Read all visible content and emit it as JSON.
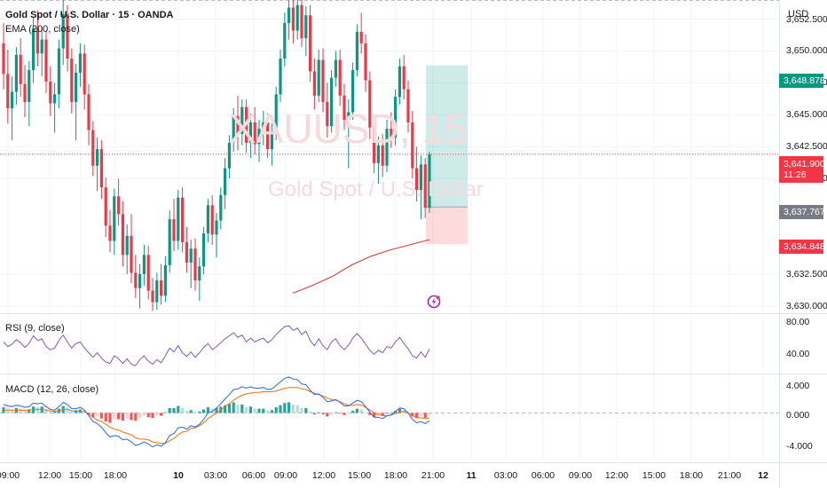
{
  "header": {
    "symbol_line": "Gold Spot / U.S. Dollar · 15 · OANDA",
    "ema_label": "EMA (200, close)"
  },
  "watermark": {
    "ticker": "XAUUSD, 15",
    "name": "Gold Spot / U.S. Dollar"
  },
  "currency": "USD",
  "price_axis": {
    "labels": [
      "3,652.500",
      "3,650.000",
      "3,647.500",
      "3,645.000",
      "3,642.500",
      "3,640.000",
      "3,632.500",
      "3,630.000"
    ],
    "values": [
      3652.5,
      3650.0,
      3647.5,
      3645.0,
      3642.5,
      3640.0,
      3632.5,
      3630.0
    ]
  },
  "price_tags": {
    "target": {
      "text": "3,648.878",
      "color": "#089981"
    },
    "current": {
      "text": "3,641.900",
      "color": "#f23645"
    },
    "countdown": "11:26",
    "entry": {
      "text": "3,637.767",
      "color": "#787b86"
    },
    "stop": {
      "text": "3,634.848",
      "color": "#f23645"
    }
  },
  "rsi": {
    "label": "RSI (9, close)",
    "axis": [
      "80.00",
      "40.00"
    ],
    "upper": 70,
    "lower": 30
  },
  "macd": {
    "label": "MACD (12, 26, close)",
    "axis": [
      "4.000",
      "0.000",
      "-4.000"
    ]
  },
  "time_axis": [
    "09:00",
    "12:00",
    "15:00",
    "18:00",
    "10",
    "03:00",
    "06:00",
    "09:00",
    "12:00",
    "15:00",
    "18:00",
    "21:00",
    "11",
    "03:00",
    "06:00",
    "09:00",
    "12:00",
    "15:00",
    "18:00",
    "21:00",
    "12"
  ],
  "chart_data": {
    "type": "candlestick",
    "instrument": "XAUUSD",
    "timeframe": "15",
    "ylim": [
      3629.5,
      3654.0
    ],
    "candles": [
      [
        3650.6,
        3652.2,
        3647.0,
        3648.2
      ],
      [
        3648.2,
        3650.1,
        3644.3,
        3645.5
      ],
      [
        3645.5,
        3648.0,
        3643.0,
        3646.8
      ],
      [
        3646.8,
        3650.3,
        3645.8,
        3649.7
      ],
      [
        3649.7,
        3651.0,
        3646.4,
        3647.4
      ],
      [
        3647.4,
        3648.9,
        3644.8,
        3646.0
      ],
      [
        3646.0,
        3649.2,
        3644.1,
        3648.5
      ],
      [
        3648.5,
        3652.6,
        3647.5,
        3651.8
      ],
      [
        3651.8,
        3653.2,
        3648.8,
        3649.8
      ],
      [
        3649.8,
        3651.9,
        3648.0,
        3650.9
      ],
      [
        3650.9,
        3651.6,
        3646.7,
        3647.6
      ],
      [
        3647.6,
        3648.8,
        3644.9,
        3645.9
      ],
      [
        3645.9,
        3647.5,
        3643.6,
        3646.6
      ],
      [
        3646.6,
        3650.9,
        3645.5,
        3650.2
      ],
      [
        3650.2,
        3654.2,
        3648.9,
        3652.9
      ],
      [
        3652.9,
        3653.6,
        3648.4,
        3649.4
      ],
      [
        3649.4,
        3650.2,
        3645.1,
        3646.0
      ],
      [
        3646.0,
        3649.0,
        3643.0,
        3648.3
      ],
      [
        3648.3,
        3650.6,
        3647.2,
        3649.8
      ],
      [
        3649.8,
        3650.5,
        3645.4,
        3646.6
      ],
      [
        3646.6,
        3647.4,
        3642.6,
        3643.8
      ],
      [
        3643.8,
        3644.5,
        3640.2,
        3641.0
      ],
      [
        3641.0,
        3643.2,
        3639.0,
        3642.3
      ],
      [
        3642.3,
        3643.0,
        3638.4,
        3639.3
      ],
      [
        3639.3,
        3640.1,
        3635.4,
        3636.3
      ],
      [
        3636.3,
        3637.5,
        3634.2,
        3635.1
      ],
      [
        3635.1,
        3639.2,
        3634.0,
        3638.6
      ],
      [
        3638.6,
        3640.0,
        3636.3,
        3637.2
      ],
      [
        3637.2,
        3638.2,
        3633.1,
        3634.0
      ],
      [
        3634.0,
        3636.4,
        3632.5,
        3635.5
      ],
      [
        3635.5,
        3637.2,
        3631.8,
        3632.6
      ],
      [
        3632.6,
        3634.0,
        3630.6,
        3631.4
      ],
      [
        3631.4,
        3633.3,
        3629.8,
        3632.5
      ],
      [
        3632.5,
        3634.8,
        3631.6,
        3634.0
      ],
      [
        3634.0,
        3634.7,
        3630.5,
        3631.2
      ],
      [
        3631.2,
        3632.2,
        3629.6,
        3630.3
      ],
      [
        3630.3,
        3632.6,
        3629.7,
        3632.0
      ],
      [
        3632.0,
        3633.3,
        3630.1,
        3630.8
      ],
      [
        3630.8,
        3633.9,
        3630.3,
        3633.2
      ],
      [
        3633.2,
        3637.5,
        3632.6,
        3636.8
      ],
      [
        3636.8,
        3638.4,
        3634.3,
        3635.1
      ],
      [
        3635.1,
        3639.1,
        3634.4,
        3638.5
      ],
      [
        3638.5,
        3639.3,
        3634.2,
        3635.0
      ],
      [
        3635.0,
        3636.2,
        3632.6,
        3633.4
      ],
      [
        3633.4,
        3635.2,
        3631.4,
        3634.5
      ],
      [
        3634.5,
        3635.3,
        3631.2,
        3632.0
      ],
      [
        3632.0,
        3633.8,
        3630.4,
        3633.1
      ],
      [
        3633.1,
        3636.2,
        3632.5,
        3635.7
      ],
      [
        3635.7,
        3638.4,
        3635.0,
        3637.9
      ],
      [
        3637.9,
        3638.7,
        3634.8,
        3635.6
      ],
      [
        3635.6,
        3637.3,
        3633.8,
        3636.7
      ],
      [
        3636.7,
        3639.3,
        3636.0,
        3638.7
      ],
      [
        3638.7,
        3641.6,
        3637.6,
        3640.8
      ],
      [
        3640.8,
        3643.4,
        3640.0,
        3642.8
      ],
      [
        3642.8,
        3645.5,
        3642.1,
        3644.9
      ],
      [
        3644.9,
        3646.5,
        3642.2,
        3643.5
      ],
      [
        3643.5,
        3646.2,
        3642.6,
        3645.6
      ],
      [
        3645.6,
        3646.2,
        3642.0,
        3642.8
      ],
      [
        3642.8,
        3645.1,
        3641.6,
        3644.4
      ],
      [
        3644.4,
        3645.6,
        3641.9,
        3642.7
      ],
      [
        3642.7,
        3644.6,
        3641.3,
        3643.9
      ],
      [
        3643.9,
        3645.3,
        3642.6,
        3644.4
      ],
      [
        3644.4,
        3645.1,
        3641.6,
        3642.3
      ],
      [
        3642.3,
        3644.3,
        3641.0,
        3643.7
      ],
      [
        3643.7,
        3647.2,
        3643.0,
        3646.6
      ],
      [
        3646.6,
        3650.1,
        3646.0,
        3649.4
      ],
      [
        3649.4,
        3653.0,
        3648.8,
        3652.2
      ],
      [
        3652.2,
        3654.3,
        3650.9,
        3653.4
      ],
      [
        3653.4,
        3654.3,
        3650.6,
        3651.6
      ],
      [
        3651.6,
        3654.1,
        3650.9,
        3653.6
      ],
      [
        3653.6,
        3654.4,
        3650.3,
        3651.0
      ],
      [
        3651.0,
        3653.5,
        3649.6,
        3652.8
      ],
      [
        3652.8,
        3653.6,
        3647.6,
        3648.4
      ],
      [
        3648.4,
        3649.4,
        3645.4,
        3646.5
      ],
      [
        3646.5,
        3650.1,
        3646.0,
        3649.3
      ],
      [
        3649.3,
        3650.2,
        3645.2,
        3646.0
      ],
      [
        3646.0,
        3647.5,
        3643.2,
        3644.1
      ],
      [
        3644.1,
        3648.5,
        3643.6,
        3647.9
      ],
      [
        3647.9,
        3650.0,
        3647.2,
        3649.3
      ],
      [
        3649.3,
        3650.1,
        3645.7,
        3646.5
      ],
      [
        3646.5,
        3647.4,
        3643.8,
        3644.6
      ],
      [
        3644.6,
        3646.2,
        3640.8,
        3645.2
      ],
      [
        3645.2,
        3649.1,
        3644.6,
        3648.5
      ],
      [
        3648.5,
        3652.1,
        3648.0,
        3651.5
      ],
      [
        3651.5,
        3653.0,
        3649.8,
        3650.6
      ],
      [
        3650.6,
        3651.3,
        3646.8,
        3647.7
      ],
      [
        3647.7,
        3648.4,
        3643.1,
        3644.0
      ],
      [
        3644.0,
        3645.0,
        3640.4,
        3641.2
      ],
      [
        3641.2,
        3643.3,
        3639.6,
        3642.6
      ],
      [
        3642.6,
        3643.5,
        3640.1,
        3641.0
      ],
      [
        3641.0,
        3644.6,
        3640.5,
        3643.9
      ],
      [
        3643.9,
        3645.2,
        3642.4,
        3643.2
      ],
      [
        3643.2,
        3647.0,
        3642.6,
        3646.4
      ],
      [
        3646.4,
        3649.4,
        3645.8,
        3648.8
      ],
      [
        3648.8,
        3649.7,
        3646.2,
        3647.0
      ],
      [
        3647.0,
        3647.7,
        3643.6,
        3644.4
      ],
      [
        3644.4,
        3645.3,
        3640.0,
        3640.8
      ],
      [
        3640.8,
        3642.5,
        3638.2,
        3639.1
      ],
      [
        3639.1,
        3641.8,
        3636.8,
        3641.1
      ],
      [
        3641.1,
        3641.6,
        3636.9,
        3637.7
      ],
      [
        3637.7,
        3642.1,
        3637.3,
        3641.9
      ]
    ],
    "ema200": [
      3631.0,
      3631.6,
      3632.3,
      3633.2,
      3633.9,
      3634.4,
      3634.8,
      3635.2
    ],
    "position": {
      "entry": 3637.767,
      "target": 3648.878,
      "stop": 3634.848
    },
    "rsi_range": [
      18,
      92
    ],
    "rsi": [
      58,
      52,
      55,
      61,
      57,
      51,
      56,
      66,
      60,
      62,
      52,
      48,
      50,
      60,
      67,
      58,
      50,
      56,
      58,
      50,
      44,
      38,
      44,
      37,
      32,
      30,
      40,
      36,
      30,
      36,
      29,
      27,
      35,
      40,
      33,
      29,
      35,
      31,
      40,
      50,
      45,
      53,
      44,
      39,
      45,
      38,
      44,
      51,
      56,
      48,
      52,
      57,
      62,
      66,
      70,
      64,
      67,
      58,
      63,
      58,
      61,
      63,
      57,
      61,
      68,
      73,
      78,
      79,
      73,
      76,
      68,
      72,
      60,
      53,
      62,
      53,
      48,
      58,
      62,
      53,
      48,
      54,
      63,
      69,
      63,
      55,
      47,
      42,
      47,
      44,
      52,
      50,
      58,
      64,
      56,
      49,
      40,
      37,
      45,
      38,
      49
    ],
    "macd_range": [
      -6.6,
      5.2
    ],
    "macd_hist": [
      0.8,
      0.6,
      0.5,
      0.7,
      0.6,
      0.4,
      0.5,
      0.9,
      0.8,
      0.9,
      0.5,
      0.2,
      0.2,
      0.6,
      1.0,
      0.7,
      0.3,
      0.4,
      0.5,
      0.2,
      -0.2,
      -0.6,
      -0.5,
      -0.8,
      -1.2,
      -1.4,
      -0.9,
      -0.9,
      -1.1,
      -0.8,
      -1.0,
      -1.1,
      -0.7,
      -0.4,
      -0.6,
      -0.7,
      -0.3,
      -0.4,
      0.1,
      0.7,
      0.7,
      1.0,
      0.7,
      0.3,
      0.4,
      0.1,
      0.2,
      0.5,
      0.8,
      0.6,
      0.7,
      0.9,
      1.1,
      1.3,
      1.5,
      1.2,
      1.2,
      0.8,
      0.9,
      0.6,
      0.6,
      0.6,
      0.3,
      0.4,
      0.8,
      1.1,
      1.4,
      1.5,
      1.2,
      1.1,
      0.7,
      0.7,
      0.2,
      -0.2,
      0.1,
      -0.2,
      -0.5,
      -0.2,
      0.1,
      -0.1,
      -0.3,
      -0.1,
      0.3,
      0.6,
      0.5,
      0.1,
      -0.3,
      -0.6,
      -0.4,
      -0.4,
      0.0,
      0.0,
      0.3,
      0.6,
      0.4,
      0.0,
      -0.5,
      -0.7,
      -0.5,
      -0.7,
      -0.3
    ],
    "macd_line": [
      1.2,
      1.0,
      0.9,
      1.1,
      1.0,
      0.8,
      0.9,
      1.4,
      1.3,
      1.4,
      0.9,
      0.5,
      0.4,
      0.9,
      1.5,
      1.2,
      0.6,
      0.6,
      0.8,
      0.4,
      -0.4,
      -1.2,
      -1.5,
      -2.0,
      -2.8,
      -3.4,
      -3.2,
      -3.3,
      -3.8,
      -3.7,
      -4.1,
      -4.6,
      -4.4,
      -4.1,
      -4.4,
      -4.8,
      -4.5,
      -4.7,
      -4.2,
      -3.2,
      -2.9,
      -2.1,
      -2.0,
      -2.3,
      -1.8,
      -2.0,
      -1.6,
      -0.9,
      0.0,
      0.2,
      0.7,
      1.3,
      2.0,
      2.6,
      3.3,
      3.4,
      3.7,
      3.5,
      3.7,
      3.5,
      3.5,
      3.6,
      3.3,
      3.4,
      3.9,
      4.4,
      4.9,
      5.1,
      4.8,
      4.7,
      4.1,
      4.0,
      3.2,
      2.6,
      2.7,
      2.2,
      1.6,
      1.7,
      1.9,
      1.5,
      1.0,
      1.0,
      1.4,
      1.8,
      1.6,
      0.9,
      0.1,
      -0.6,
      -0.6,
      -0.8,
      -0.4,
      -0.3,
      0.2,
      0.7,
      0.6,
      0.0,
      -0.9,
      -1.4,
      -1.2,
      -1.5,
      -1.1
    ],
    "signal_line": [
      0.4,
      0.4,
      0.4,
      0.4,
      0.4,
      0.4,
      0.4,
      0.5,
      0.5,
      0.5,
      0.4,
      0.3,
      0.2,
      0.3,
      0.5,
      0.5,
      0.3,
      0.2,
      0.3,
      0.2,
      -0.2,
      -0.6,
      -1.0,
      -1.2,
      -1.6,
      -2.0,
      -2.3,
      -2.4,
      -2.7,
      -2.9,
      -3.1,
      -3.5,
      -3.7,
      -3.7,
      -3.8,
      -4.1,
      -4.2,
      -4.3,
      -4.3,
      -3.9,
      -3.6,
      -3.1,
      -2.7,
      -2.6,
      -2.2,
      -2.1,
      -1.8,
      -1.4,
      -0.8,
      -0.4,
      0.0,
      0.4,
      0.9,
      1.3,
      1.8,
      2.2,
      2.5,
      2.7,
      2.8,
      2.9,
      2.9,
      3.0,
      3.0,
      3.0,
      3.1,
      3.3,
      3.5,
      3.6,
      3.6,
      3.6,
      3.4,
      3.3,
      3.0,
      2.8,
      2.6,
      2.4,
      2.1,
      1.9,
      1.8,
      1.6,
      1.3,
      1.1,
      1.1,
      1.2,
      1.1,
      0.8,
      0.4,
      0.0,
      -0.2,
      -0.4,
      -0.4,
      -0.3,
      -0.1,
      0.1,
      0.2,
      0.0,
      -0.4,
      -0.7,
      -0.7,
      -0.8,
      -0.8
    ]
  }
}
